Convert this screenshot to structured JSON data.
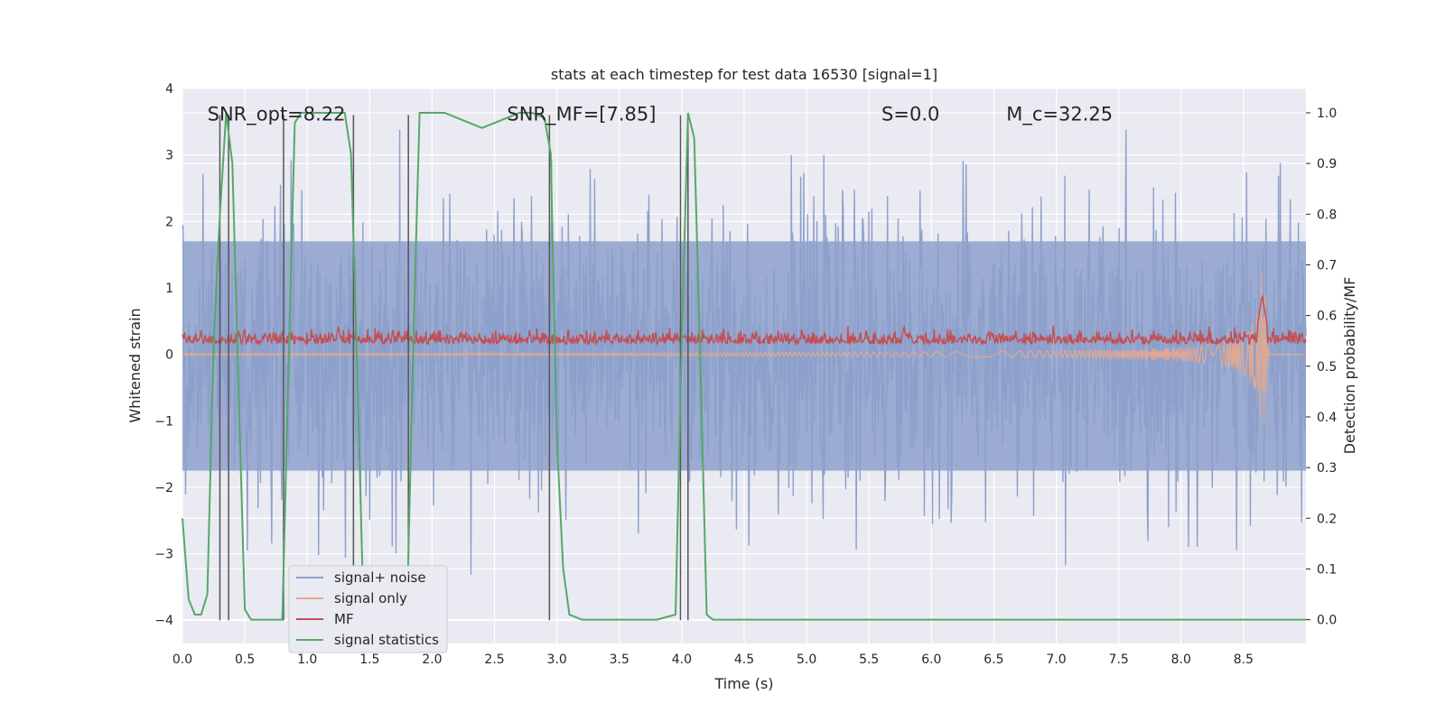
{
  "chart_data": {
    "type": "line",
    "title": "stats at each timestep for test data 16530 [signal=1]",
    "xlabel": "Time (s)",
    "ylabel": "Whitened strain",
    "ylabel_right": "Detection probability/MF",
    "xlim": [
      0.0,
      9.0
    ],
    "ylim": [
      -4.35,
      4.0
    ],
    "ylim_right": [
      -0.047,
      1.048
    ],
    "xticks": [
      0.0,
      0.5,
      1.0,
      1.5,
      2.0,
      2.5,
      3.0,
      3.5,
      4.0,
      4.5,
      5.0,
      5.5,
      6.0,
      6.5,
      7.0,
      7.5,
      8.0,
      8.5
    ],
    "xtick_labels": [
      "0.0",
      "0.5",
      "1.0",
      "1.5",
      "2.0",
      "2.5",
      "3.0",
      "3.5",
      "4.0",
      "4.5",
      "5.0",
      "5.5",
      "6.0",
      "6.5",
      "7.0",
      "7.5",
      "8.0",
      "8.5"
    ],
    "yticks": [
      -4,
      -3,
      -2,
      -1,
      0,
      1,
      2,
      3,
      4
    ],
    "ytick_labels": [
      "−4",
      "−3",
      "−2",
      "−1",
      "0",
      "1",
      "2",
      "3",
      "4"
    ],
    "yticks_right": [
      0.0,
      0.1,
      0.2,
      0.3,
      0.4,
      0.5,
      0.6,
      0.7,
      0.8,
      0.9,
      1.0
    ],
    "ytick_labels_right": [
      "0.0",
      "0.1",
      "0.2",
      "0.3",
      "0.4",
      "0.5",
      "0.6",
      "0.7",
      "0.8",
      "0.9",
      "1.0"
    ],
    "grid": true,
    "legend_placement": "lower-left",
    "annotations": [
      {
        "label": "SNR_opt=8.22",
        "x": 0.2,
        "y": 3.6
      },
      {
        "label": "SNR_MF=[7.85]",
        "x": 2.6,
        "y": 3.6
      },
      {
        "label": "S=0.0",
        "x": 5.6,
        "y": 3.6
      },
      {
        "label": "M_c=32.25",
        "x": 6.6,
        "y": 3.6
      }
    ],
    "event_markers": [
      0.3,
      0.37,
      0.81,
      1.37,
      1.81,
      2.94,
      3.99,
      4.05
    ],
    "series": [
      {
        "name": "signal+ noise",
        "color": "#8da0cb",
        "axis": "left",
        "band_envelope": {
          "x": [
            0.0,
            1.0,
            2.0,
            3.0,
            4.0,
            5.0,
            6.0,
            7.0,
            8.0,
            8.66,
            9.0
          ],
          "upper": [
            2.6,
            3.3,
            3.5,
            3.5,
            3.0,
            3.0,
            3.0,
            3.1,
            3.6,
            3.6,
            2.2
          ],
          "lower": [
            -2.9,
            -3.0,
            -3.2,
            -3.6,
            -3.4,
            -3.2,
            -4.0,
            -3.4,
            -3.4,
            -3.6,
            -2.6
          ]
        }
      },
      {
        "name": "signal only",
        "color": "#e8a88c",
        "axis": "left",
        "chirp": {
          "t_merger": 8.66,
          "peak_amplitude": 1.9
        }
      },
      {
        "name": "MF",
        "color": "#c44e52",
        "axis": "right",
        "baseline": 0.55,
        "peaks": [
          {
            "x": 8.65,
            "y": 0.64
          },
          {
            "x": 5.78,
            "y": 0.58
          },
          {
            "x": 1.25,
            "y": 0.58
          }
        ]
      },
      {
        "name": "signal statistics",
        "color": "#55a868",
        "axis": "right",
        "x": [
          0.0,
          0.05,
          0.1,
          0.15,
          0.2,
          0.25,
          0.3,
          0.35,
          0.4,
          0.45,
          0.5,
          0.55,
          0.6,
          0.7,
          0.8,
          0.85,
          0.9,
          0.95,
          1.0,
          1.1,
          1.2,
          1.3,
          1.35,
          1.4,
          1.45,
          1.5,
          1.6,
          1.7,
          1.8,
          1.85,
          1.9,
          2.0,
          2.1,
          2.2,
          2.3,
          2.4,
          2.5,
          2.6,
          2.7,
          2.8,
          2.9,
          2.95,
          3.0,
          3.05,
          3.1,
          3.2,
          3.5,
          3.8,
          3.95,
          4.0,
          4.05,
          4.1,
          4.15,
          4.2,
          4.25,
          4.3,
          9.0
        ],
        "y": [
          0.2,
          0.04,
          0.01,
          0.01,
          0.05,
          0.55,
          0.8,
          1.0,
          0.9,
          0.45,
          0.02,
          0.0,
          0.0,
          0.0,
          0.0,
          0.5,
          0.98,
          1.0,
          1.0,
          1.0,
          1.0,
          1.0,
          0.92,
          0.5,
          0.02,
          0.0,
          0.0,
          0.0,
          0.02,
          0.55,
          1.0,
          1.0,
          1.0,
          0.99,
          0.98,
          0.97,
          0.98,
          0.99,
          1.0,
          1.0,
          0.99,
          0.92,
          0.35,
          0.1,
          0.01,
          0.0,
          0.0,
          0.0,
          0.01,
          0.55,
          1.0,
          0.95,
          0.5,
          0.01,
          0.0,
          0.0,
          0.0
        ]
      }
    ]
  }
}
